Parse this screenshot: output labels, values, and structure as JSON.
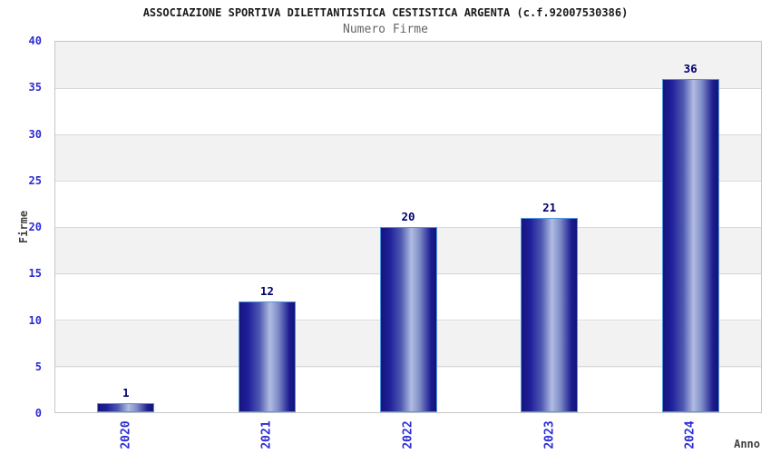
{
  "title": "ASSOCIAZIONE SPORTIVA DILETTANTISTICA CESTISTICA ARGENTA (c.f.92007530386)",
  "subtitle": "Numero Firme",
  "chart_data": {
    "type": "bar",
    "categories": [
      "2020",
      "2021",
      "2022",
      "2023",
      "2024"
    ],
    "values": [
      1,
      12,
      20,
      21,
      36
    ],
    "title": "ASSOCIAZIONE SPORTIVA DILETTANTISTICA CESTISTICA ARGENTA (c.f.92007530386)",
    "subtitle": "Numero Firme",
    "xlabel": "Anno",
    "ylabel": "Firme",
    "ylim": [
      0,
      40
    ],
    "yticks": [
      0,
      5,
      10,
      15,
      20,
      25,
      30,
      35,
      40
    ],
    "grid": "horizontal gridlines with alternating gray/white bands every 5 units",
    "legend_position": "none",
    "bar_value_labels": [
      1,
      12,
      20,
      21,
      36
    ],
    "x_tick_rotation": -90,
    "colors": {
      "bar_dark": "#15157d",
      "bar_light": "#b0bce2",
      "bar_border": "#4f97e0",
      "axis_tick_label": "#2b2bd4",
      "value_label": "#000070",
      "band_gray": "#f2f2f2",
      "gridline": "#d9d9d9",
      "plot_border": "#c6c6c6",
      "axis_title": "#404040",
      "subtitle": "#666666",
      "title": "#1a1a1a"
    }
  }
}
